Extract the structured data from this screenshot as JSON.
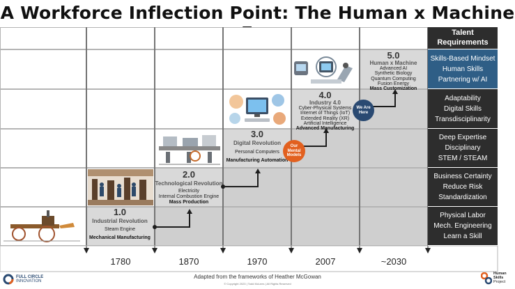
{
  "title": "A Workforce Inflection Point: The Human x Machine Era",
  "talent": {
    "header": [
      "Talent",
      "Requirements"
    ],
    "rows": [
      {
        "lines": [
          "Skills-Based Mindset",
          "Human Skills",
          "Partnering w/ AI"
        ],
        "color": "#2f5e86"
      },
      {
        "lines": [
          "Adaptability",
          "Digital Skills",
          "Transdisciplinarity"
        ],
        "color": "#2d2d2d"
      },
      {
        "lines": [
          "Deep Expertise",
          "Disciplinary",
          "STEM / STEAM"
        ],
        "color": "#2d2d2d"
      },
      {
        "lines": [
          "Business Certainty",
          "Reduce Risk",
          "Standardization"
        ],
        "color": "#2d2d2d"
      },
      {
        "lines": [
          "Physical Labor",
          "Mech. Engineering",
          "Learn a Skill"
        ],
        "color": "#2d2d2d"
      }
    ]
  },
  "stages": [
    {
      "num": "1.0",
      "name": "Industrial Revolution",
      "items": [
        "Steam Engine"
      ],
      "highlight": "Mechanical Manufacturing"
    },
    {
      "num": "2.0",
      "name": "Technological Revolution",
      "items": [
        "Electricity",
        "Internal Combustion Engine"
      ],
      "highlight": "Mass Production"
    },
    {
      "num": "3.0",
      "name": "Digital Revolution",
      "items": [
        "Personal Computers"
      ],
      "highlight": "Manufacturing Automation"
    },
    {
      "num": "4.0",
      "name": "Industry 4.0",
      "items": [
        "Cyber-Physical Systems",
        "Internet of Things (IoT)",
        "Extended Reality (XR)",
        "Artificial Intelligence"
      ],
      "highlight": "Advanced Manufacturing"
    },
    {
      "num": "5.0",
      "name": "Human x Machine",
      "items": [
        "Advanced AI",
        "Synthetic Biology",
        "Quantum Computing",
        "Fusion Energy"
      ],
      "highlight": "Mass Customization"
    }
  ],
  "years": [
    "1780",
    "1870",
    "1970",
    "2007",
    "~2030"
  ],
  "badges": {
    "mental_models": [
      "Our",
      "Mental",
      "Models"
    ],
    "we_are_here": [
      "We Are",
      "Here"
    ]
  },
  "footer": {
    "adapted": "Adapted from the frameworks of Heather McGowan",
    "copyright": "© Copyright 2023 | Todd McLees | All Rights Reserved",
    "left_logo": [
      "FULL CIRCLE",
      "INNOVATION"
    ],
    "right_logo": [
      "Human",
      "Skills",
      "Project"
    ]
  },
  "colors": {
    "grid_light": "#ffffff",
    "grid_shaded": "#cfcfcf",
    "column_shaded": "#d9d9d9",
    "talent_dark": "#2d2d2d",
    "talent_blue": "#2f5e86",
    "badge_orange": "#e2601f",
    "badge_navy": "#2a4a72",
    "arrow": "#1c1c1c"
  }
}
